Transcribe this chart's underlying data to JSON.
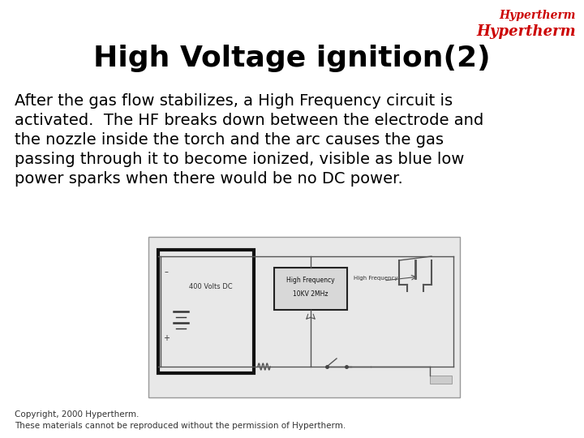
{
  "title": "High Voltage ignition(2)",
  "title_fontsize": 26,
  "title_fontweight": "bold",
  "title_color": "#000000",
  "body_lines": [
    "After the gas flow stabilizes, a High Frequency circuit is",
    "activated.  The HF breaks down between the electrode and",
    "the nozzle inside the torch and the arc causes the gas",
    "passing through it to become ionized, visible as blue low",
    "power sparks when there would be no DC power."
  ],
  "body_fontsize": 14,
  "copyright_line1": "Copyright, 2000 Hypertherm.",
  "copyright_line2": "These materials cannot be reproduced without the permission of Hypertherm.",
  "copyright_fontsize": 7.5,
  "logo_line1": "Hypertherm",
  "logo_line2": "Hypertherm",
  "logo_color": "#cc0000",
  "background_color": "#ffffff"
}
